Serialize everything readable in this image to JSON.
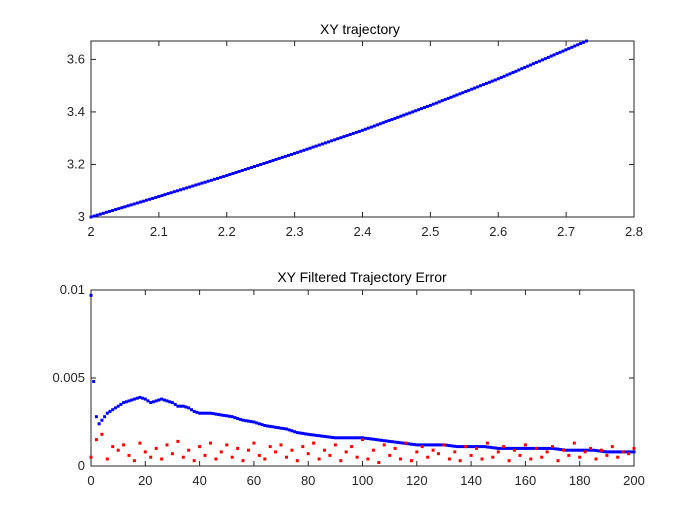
{
  "chart_data": [
    {
      "type": "line",
      "title": "XY trajectory",
      "xlabel": "",
      "ylabel": "",
      "xlim": [
        2,
        2.8
      ],
      "ylim": [
        3,
        3.67
      ],
      "xticks": [
        2,
        2.1,
        2.2,
        2.3,
        2.4,
        2.5,
        2.6,
        2.7,
        2.8
      ],
      "xtick_labels": [
        "2",
        "2.1",
        "2.2",
        "2.3",
        "2.4",
        "2.5",
        "2.6",
        "2.7",
        "2.8"
      ],
      "yticks": [
        3,
        3.2,
        3.4,
        3.6
      ],
      "ytick_labels": [
        "3",
        "3.2",
        "3.4",
        "3.6"
      ],
      "grid": false,
      "legend": "none",
      "series": [
        {
          "style": "solid-line",
          "color": "#ff0000",
          "x": [
            2.0,
            2.1,
            2.2,
            2.3,
            2.4,
            2.5,
            2.6,
            2.73
          ],
          "y": [
            3.0,
            3.078,
            3.158,
            3.242,
            3.33,
            3.425,
            3.526,
            3.67
          ]
        },
        {
          "style": "dots",
          "color": "#0000ff",
          "x": [
            2.0,
            2.1,
            2.2,
            2.3,
            2.4,
            2.5,
            2.6,
            2.73
          ],
          "y": [
            3.0,
            3.078,
            3.158,
            3.242,
            3.33,
            3.425,
            3.526,
            3.67
          ]
        }
      ]
    },
    {
      "type": "scatter",
      "title": "XY Filtered Trajectory Error",
      "xlabel": "",
      "ylabel": "",
      "xlim": [
        0,
        200
      ],
      "ylim": [
        0,
        0.01
      ],
      "xticks": [
        0,
        20,
        40,
        60,
        80,
        100,
        120,
        140,
        160,
        180,
        200
      ],
      "xtick_labels": [
        "0",
        "20",
        "40",
        "60",
        "80",
        "100",
        "120",
        "140",
        "160",
        "180",
        "200"
      ],
      "yticks": [
        0,
        0.005,
        0.01
      ],
      "ytick_labels": [
        "0",
        "0.005",
        "0.01"
      ],
      "grid": false,
      "legend": "none",
      "series": [
        {
          "color": "#0000ff",
          "x": [
            0,
            1,
            2,
            3,
            4,
            5,
            6,
            7,
            8,
            9,
            10,
            12,
            14,
            16,
            18,
            20,
            22,
            24,
            26,
            28,
            30,
            32,
            34,
            36,
            38,
            40,
            44,
            48,
            52,
            56,
            60,
            64,
            68,
            72,
            76,
            80,
            85,
            90,
            95,
            100,
            105,
            110,
            115,
            120,
            125,
            130,
            135,
            140,
            145,
            150,
            155,
            160,
            165,
            170,
            175,
            180,
            185,
            190,
            195,
            200
          ],
          "y": [
            0.0097,
            0.0048,
            0.0028,
            0.0024,
            0.0026,
            0.0028,
            0.003,
            0.0031,
            0.0032,
            0.0033,
            0.0034,
            0.0036,
            0.0037,
            0.0038,
            0.0039,
            0.0038,
            0.0036,
            0.0037,
            0.0038,
            0.0037,
            0.0036,
            0.0034,
            0.0034,
            0.0033,
            0.0031,
            0.003,
            0.003,
            0.0029,
            0.0028,
            0.0026,
            0.0025,
            0.0023,
            0.0022,
            0.0021,
            0.0019,
            0.0018,
            0.0017,
            0.0016,
            0.0016,
            0.0016,
            0.0015,
            0.0014,
            0.0013,
            0.0012,
            0.0012,
            0.0012,
            0.0011,
            0.0011,
            0.0011,
            0.001,
            0.001,
            0.001,
            0.001,
            0.001,
            0.0009,
            0.0009,
            0.0009,
            0.0008,
            0.0008,
            0.0008
          ]
        },
        {
          "color": "#ff0000",
          "x": [
            0,
            2,
            4,
            6,
            8,
            10,
            12,
            14,
            16,
            18,
            20,
            22,
            24,
            26,
            28,
            30,
            32,
            34,
            36,
            38,
            40,
            42,
            44,
            46,
            48,
            50,
            52,
            54,
            56,
            58,
            60,
            62,
            64,
            66,
            68,
            70,
            72,
            74,
            76,
            78,
            80,
            82,
            84,
            86,
            88,
            90,
            92,
            94,
            96,
            98,
            100,
            102,
            104,
            106,
            108,
            110,
            112,
            114,
            116,
            118,
            120,
            122,
            124,
            126,
            128,
            130,
            132,
            134,
            136,
            138,
            140,
            142,
            144,
            146,
            148,
            150,
            152,
            154,
            156,
            158,
            160,
            162,
            164,
            166,
            168,
            170,
            172,
            174,
            176,
            178,
            180,
            182,
            184,
            186,
            188,
            190,
            192,
            194,
            196,
            198,
            200
          ],
          "y": [
            0.0005,
            0.0015,
            0.0018,
            0.0004,
            0.0011,
            0.0009,
            0.0012,
            0.0006,
            0.0003,
            0.0013,
            0.0008,
            0.0005,
            0.001,
            0.0004,
            0.0012,
            0.0007,
            0.0014,
            0.0005,
            0.0009,
            0.0003,
            0.0011,
            0.0006,
            0.0013,
            0.0004,
            0.0008,
            0.0012,
            0.0005,
            0.001,
            0.0003,
            0.0009,
            0.0013,
            0.0006,
            0.0004,
            0.0011,
            0.0008,
            0.0012,
            0.0005,
            0.0009,
            0.0003,
            0.0011,
            0.0007,
            0.0013,
            0.0004,
            0.0009,
            0.0006,
            0.0012,
            0.0003,
            0.0008,
            0.0011,
            0.0005,
            0.0015,
            0.0004,
            0.0009,
            0.0002,
            0.0012,
            0.0006,
            0.001,
            0.0004,
            0.0013,
            0.0003,
            0.0008,
            0.0011,
            0.0005,
            0.0009,
            0.0007,
            0.0012,
            0.0004,
            0.0008,
            0.0003,
            0.0011,
            0.0006,
            0.001,
            0.0004,
            0.0013,
            0.0005,
            0.0008,
            0.0011,
            0.0003,
            0.0009,
            0.0006,
            0.0012,
            0.0004,
            0.001,
            0.0005,
            0.0008,
            0.0011,
            0.0003,
            0.0009,
            0.0006,
            0.0013,
            0.0005,
            0.0008,
            0.001,
            0.0004,
            0.0009,
            0.0006,
            0.0011,
            0.0005,
            0.0008,
            0.0007,
            0.001
          ]
        }
      ]
    }
  ]
}
